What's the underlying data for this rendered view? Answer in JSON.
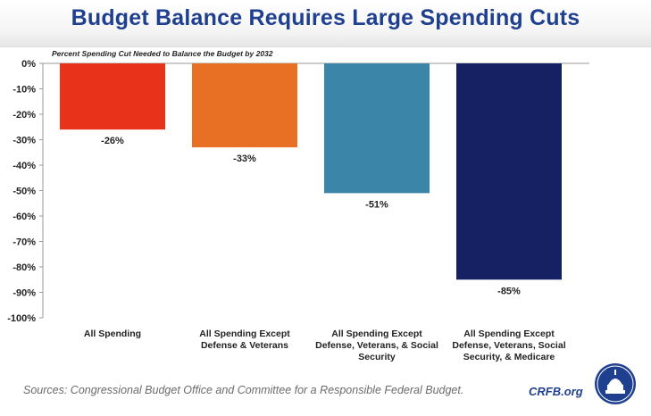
{
  "header": {
    "title": "Budget Balance Requires Large Spending Cuts"
  },
  "chart_data": {
    "type": "bar",
    "title": "Budget Balance Requires Large Spending Cuts",
    "subtitle": "Percent Spending Cut Needed to Balance the Budget by 2032",
    "categories": [
      [
        "All Spending"
      ],
      [
        "All Spending Except",
        "Defense & Veterans"
      ],
      [
        "All Spending Except",
        "Defense, Veterans, & Social",
        "Security"
      ],
      [
        "All Spending Except",
        "Defense, Veterans, Social",
        "Security, & Medicare"
      ]
    ],
    "values": [
      -26,
      -33,
      -51,
      -85
    ],
    "value_labels": [
      "-26%",
      "-33%",
      "-51%",
      "-85%"
    ],
    "bar_colors": [
      "#e8331a",
      "#e87025",
      "#3a85a8",
      "#162163"
    ],
    "ylim": [
      -100,
      0
    ],
    "yticks": [
      0,
      -10,
      -20,
      -30,
      -40,
      -50,
      -60,
      -70,
      -80,
      -90,
      -100
    ],
    "ytick_labels": [
      "0%",
      "-10%",
      "-20%",
      "-30%",
      "-40%",
      "-50%",
      "-60%",
      "-70%",
      "-80%",
      "-90%",
      "-100%"
    ],
    "xlabel": "",
    "ylabel": "",
    "grid": false,
    "legend": "none"
  },
  "footer": {
    "source": "Sources: Congressional Budget Office and Committee for a Responsible Federal Budget.",
    "brand": "CRFB.org",
    "logo_icon": "capitol-dome-seal-icon"
  }
}
